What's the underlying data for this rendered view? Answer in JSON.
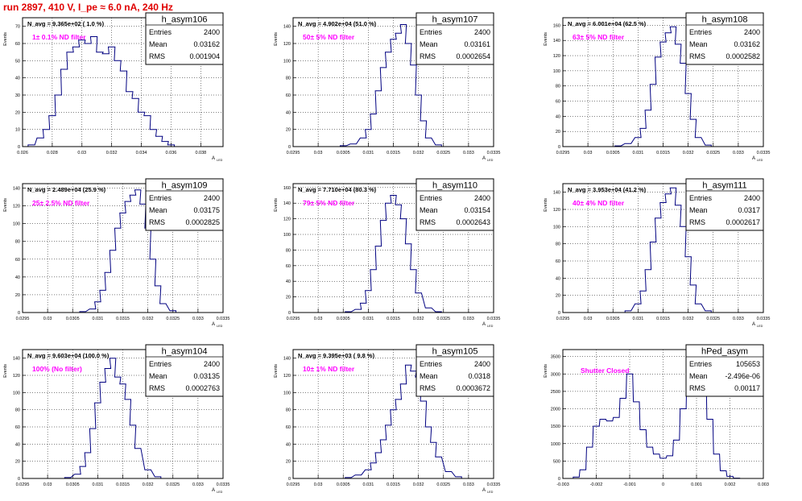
{
  "page": {
    "run_title": "run 2897,   410 V, I_pe ≈ 6.0 nA, 240 Hz"
  },
  "colors": {
    "histogram_line": "#000080",
    "filter_label": "#ff00ff",
    "run_title": "#e00000",
    "frame": "#000000",
    "grid": "#000000"
  },
  "chart_data": [
    {
      "type": "histogram",
      "name": "h_asym106",
      "header": "N_avg = 9.365e+02 ( 1.0 %)",
      "annotation": "1± 0.1% ND filter",
      "stats": {
        "entries_label": "Entries",
        "entries": "2400",
        "mean_label": "Mean",
        "mean": "0.03162",
        "rms_label": "RMS",
        "rms": "0.001904"
      },
      "ylabel": "Events",
      "xlabel": "A",
      "xlabel_sub": "LED",
      "xlim": [
        0.026,
        0.0395
      ],
      "ylim": [
        0,
        75
      ],
      "xticks": [
        "0.026",
        "0.028",
        "0.03",
        "0.032",
        "0.034",
        "0.036",
        "0.038"
      ],
      "xtick_values": [
        0.026,
        0.028,
        0.03,
        0.032,
        0.034,
        0.036,
        0.038
      ],
      "yticks": [
        0,
        10,
        20,
        30,
        40,
        50,
        60,
        70
      ],
      "bins": 90,
      "x": [
        0.0266,
        0.0272,
        0.0276,
        0.028,
        0.0284,
        0.0288,
        0.0292,
        0.0296,
        0.03,
        0.0304,
        0.0308,
        0.0312,
        0.0316,
        0.032,
        0.0324,
        0.0328,
        0.0332,
        0.0336,
        0.034,
        0.0344,
        0.0348,
        0.0352,
        0.0356,
        0.036
      ],
      "y": [
        1,
        5,
        10,
        18,
        30,
        45,
        55,
        58,
        62,
        60,
        64,
        55,
        54,
        58,
        50,
        44,
        32,
        28,
        20,
        18,
        10,
        6,
        3,
        1
      ]
    },
    {
      "type": "histogram",
      "name": "h_asym107",
      "header": "N_avg = 4.902e+04 (51.0 %)",
      "annotation": "50± 5% ND filter",
      "stats": {
        "entries_label": "Entries",
        "entries": "2400",
        "mean_label": "Mean",
        "mean": "0.03161",
        "rms_label": "RMS",
        "rms": "0.0002654"
      },
      "ylabel": "Events",
      "xlabel": "A",
      "xlabel_sub": "LED",
      "xlim": [
        0.0295,
        0.0335
      ],
      "ylim": [
        0,
        150
      ],
      "xticks": [
        "0.0295",
        "0.03",
        "0.0305",
        "0.031",
        "0.0315",
        "0.032",
        "0.0325",
        "0.033",
        "0.0335"
      ],
      "xtick_values": [
        0.0295,
        0.03,
        0.0305,
        0.031,
        0.0315,
        0.032,
        0.0325,
        0.033,
        0.0335
      ],
      "yticks": [
        0,
        20,
        40,
        60,
        80,
        100,
        120,
        140
      ],
      "bins": 100,
      "x": [
        0.0305,
        0.0307,
        0.0309,
        0.031,
        0.0311,
        0.0312,
        0.0313,
        0.0314,
        0.0315,
        0.0316,
        0.0317,
        0.0318,
        0.0319,
        0.032,
        0.0321,
        0.0322,
        0.0324
      ],
      "y": [
        1,
        3,
        10,
        20,
        38,
        65,
        92,
        110,
        125,
        132,
        142,
        120,
        95,
        60,
        30,
        10,
        2
      ]
    },
    {
      "type": "histogram",
      "name": "h_asym108",
      "header": "N_avg = 6.001e+04 (62.5 %)",
      "annotation": "63± 5% ND filter",
      "stats": {
        "entries_label": "Entries",
        "entries": "2400",
        "mean_label": "Mean",
        "mean": "0.03162",
        "rms_label": "RMS",
        "rms": "0.0002582"
      },
      "ylabel": "Events",
      "xlabel": "A",
      "xlabel_sub": "LED",
      "xlim": [
        0.0295,
        0.0335
      ],
      "ylim": [
        0,
        170
      ],
      "xticks": [
        "0.0295",
        "0.03",
        "0.0305",
        "0.031",
        "0.0315",
        "0.032",
        "0.0325",
        "0.033",
        "0.0335"
      ],
      "xtick_values": [
        0.0295,
        0.03,
        0.0305,
        0.031,
        0.0315,
        0.032,
        0.0325,
        0.033,
        0.0335
      ],
      "yticks": [
        0,
        20,
        40,
        60,
        80,
        100,
        120,
        140,
        160
      ],
      "bins": 100,
      "x": [
        0.0306,
        0.0308,
        0.031,
        0.0311,
        0.0312,
        0.0313,
        0.0314,
        0.0315,
        0.0316,
        0.0317,
        0.0318,
        0.0319,
        0.032,
        0.0321,
        0.0322,
        0.0324
      ],
      "y": [
        1,
        4,
        12,
        24,
        48,
        82,
        118,
        138,
        150,
        158,
        135,
        110,
        70,
        36,
        12,
        2
      ]
    },
    {
      "type": "histogram",
      "name": "h_asym109",
      "header": "N_avg = 2.489e+04 (25.9 %)",
      "annotation": "25± 2.5% ND filter",
      "stats": {
        "entries_label": "Entries",
        "entries": "2400",
        "mean_label": "Mean",
        "mean": "0.03175",
        "rms_label": "RMS",
        "rms": "0.0002825"
      },
      "ylabel": "Events",
      "xlabel": "A",
      "xlabel_sub": "LED",
      "xlim": [
        0.0295,
        0.0335
      ],
      "ylim": [
        0,
        145
      ],
      "xticks": [
        "0.0295",
        "0.03",
        "0.0305",
        "0.031",
        "0.0315",
        "0.032",
        "0.0325",
        "0.033",
        "0.0335"
      ],
      "xtick_values": [
        0.0295,
        0.03,
        0.0305,
        0.031,
        0.0315,
        0.032,
        0.0325,
        0.033,
        0.0335
      ],
      "yticks": [
        0,
        20,
        40,
        60,
        80,
        100,
        120,
        140
      ],
      "bins": 100,
      "x": [
        0.0307,
        0.0309,
        0.031,
        0.0311,
        0.0312,
        0.0313,
        0.0314,
        0.0315,
        0.0316,
        0.0317,
        0.0318,
        0.0319,
        0.032,
        0.0321,
        0.0322,
        0.0323,
        0.0325
      ],
      "y": [
        1,
        4,
        12,
        25,
        45,
        70,
        95,
        112,
        125,
        132,
        138,
        122,
        95,
        60,
        30,
        10,
        2
      ]
    },
    {
      "type": "histogram",
      "name": "h_asym110",
      "header": "N_avg = 7.710e+04 (80.3 %)",
      "annotation": "79± 5% ND filter",
      "stats": {
        "entries_label": "Entries",
        "entries": "2400",
        "mean_label": "Mean",
        "mean": "0.03154",
        "rms_label": "RMS",
        "rms": "0.0002643"
      },
      "ylabel": "Events",
      "xlabel": "A",
      "xlabel_sub": "LED",
      "xlim": [
        0.0295,
        0.0335
      ],
      "ylim": [
        0,
        165
      ],
      "xticks": [
        "0.0295",
        "0.03",
        "0.0305",
        "0.031",
        "0.0315",
        "0.032",
        "0.0325",
        "0.033",
        "0.0335"
      ],
      "xtick_values": [
        0.0295,
        0.03,
        0.0305,
        0.031,
        0.0315,
        0.032,
        0.0325,
        0.033,
        0.0335
      ],
      "yticks": [
        0,
        20,
        40,
        60,
        80,
        100,
        120,
        140,
        160
      ],
      "bins": 100,
      "x": [
        0.0306,
        0.0308,
        0.0309,
        0.031,
        0.0311,
        0.0312,
        0.0313,
        0.0314,
        0.0315,
        0.0316,
        0.0317,
        0.0318,
        0.0319,
        0.032,
        0.0322,
        0.0324
      ],
      "y": [
        1,
        4,
        12,
        28,
        55,
        85,
        118,
        140,
        150,
        138,
        120,
        88,
        55,
        25,
        6,
        1
      ]
    },
    {
      "type": "histogram",
      "name": "h_asym111",
      "header": "N_avg = 3.953e+04 (41.2 %)",
      "annotation": "40± 4% ND filter",
      "stats": {
        "entries_label": "Entries",
        "entries": "2400",
        "mean_label": "Mean",
        "mean": "0.0317",
        "rms_label": "RMS",
        "rms": "0.0002617"
      },
      "ylabel": "Events",
      "xlabel": "A",
      "xlabel_sub": "LED",
      "xlim": [
        0.0295,
        0.0335
      ],
      "ylim": [
        0,
        150
      ],
      "xticks": [
        "0.0295",
        "0.03",
        "0.0305",
        "0.031",
        "0.0315",
        "0.032",
        "0.0325",
        "0.033",
        "0.0335"
      ],
      "xtick_values": [
        0.0295,
        0.03,
        0.0305,
        0.031,
        0.0315,
        0.032,
        0.0325,
        0.033,
        0.0335
      ],
      "yticks": [
        0,
        20,
        40,
        60,
        80,
        100,
        120,
        140
      ],
      "bins": 100,
      "x": [
        0.0308,
        0.031,
        0.0311,
        0.0312,
        0.0313,
        0.0314,
        0.0315,
        0.0316,
        0.0317,
        0.0318,
        0.0319,
        0.032,
        0.0321,
        0.0322,
        0.0324
      ],
      "y": [
        2,
        10,
        25,
        50,
        82,
        110,
        128,
        138,
        145,
        125,
        100,
        65,
        32,
        10,
        2
      ]
    },
    {
      "type": "histogram",
      "name": "h_asym104",
      "header": "N_avg = 9.603e+04 (100.0 %)",
      "annotation": "100% (No filter)",
      "stats": {
        "entries_label": "Entries",
        "entries": "2400",
        "mean_label": "Mean",
        "mean": "0.03135",
        "rms_label": "RMS",
        "rms": "0.0002763"
      },
      "ylabel": "Events",
      "xlabel": "A",
      "xlabel_sub": "LED",
      "xlim": [
        0.0295,
        0.0335
      ],
      "ylim": [
        0,
        150
      ],
      "xticks": [
        "0.0295",
        "0.03",
        "0.0305",
        "0.031",
        "0.0315",
        "0.032",
        "0.0325",
        "0.033",
        "0.0335"
      ],
      "xtick_values": [
        0.0295,
        0.03,
        0.0305,
        0.031,
        0.0315,
        0.032,
        0.0325,
        0.033,
        0.0335
      ],
      "yticks": [
        0,
        20,
        40,
        60,
        80,
        100,
        120,
        140
      ],
      "bins": 100,
      "x": [
        0.0304,
        0.0306,
        0.0307,
        0.0308,
        0.0309,
        0.031,
        0.0311,
        0.0312,
        0.0313,
        0.0314,
        0.0315,
        0.0316,
        0.0317,
        0.0318,
        0.032,
        0.0322
      ],
      "y": [
        1,
        5,
        14,
        30,
        58,
        88,
        112,
        128,
        140,
        118,
        110,
        92,
        62,
        35,
        10,
        2
      ]
    },
    {
      "type": "histogram",
      "name": "h_asym105",
      "header": "N_avg = 9.395e+03 ( 9.8 %)",
      "annotation": "10± 1% ND filter",
      "stats": {
        "entries_label": "Entries",
        "entries": "2400",
        "mean_label": "Mean",
        "mean": "0.0318",
        "rms_label": "RMS",
        "rms": "0.0003672"
      },
      "ylabel": "Events",
      "xlabel": "A",
      "xlabel_sub": "LED",
      "xlim": [
        0.0295,
        0.0335
      ],
      "ylim": [
        0,
        150
      ],
      "xticks": [
        "0.0295",
        "0.03",
        "0.0305",
        "0.031",
        "0.0315",
        "0.032",
        "0.0325",
        "0.033",
        "0.0335"
      ],
      "xtick_values": [
        0.0295,
        0.03,
        0.0305,
        0.031,
        0.0315,
        0.032,
        0.0325,
        0.033,
        0.0335
      ],
      "yticks": [
        0,
        20,
        40,
        60,
        80,
        100,
        120,
        140
      ],
      "bins": 100,
      "x": [
        0.0306,
        0.0308,
        0.031,
        0.0311,
        0.0312,
        0.0313,
        0.0314,
        0.0315,
        0.0316,
        0.0317,
        0.0318,
        0.0319,
        0.032,
        0.0321,
        0.0322,
        0.0323,
        0.0324,
        0.0326,
        0.0328
      ],
      "y": [
        1,
        4,
        10,
        18,
        30,
        45,
        62,
        80,
        92,
        110,
        132,
        125,
        118,
        90,
        60,
        42,
        25,
        8,
        2
      ]
    },
    {
      "type": "histogram",
      "name": "hPed_asym",
      "header": "",
      "annotation": "Shutter Closed",
      "stats": {
        "entries_label": "Entries",
        "entries": "105653",
        "mean_label": "Mean",
        "mean": "-2.496e-06",
        "rms_label": "RMS",
        "rms": "0.00117"
      },
      "ylabel": "Events",
      "xlabel": "",
      "xlabel_sub": "",
      "xlim": [
        -0.003,
        0.003
      ],
      "ylim": [
        0,
        3700
      ],
      "xticks": [
        "-0.003",
        "-0.002",
        "-0.001",
        "0",
        "0.001",
        "0.002",
        "0.003"
      ],
      "xtick_values": [
        -0.003,
        -0.002,
        -0.001,
        0,
        0.001,
        0.002,
        0.003
      ],
      "yticks": [
        0,
        500,
        1000,
        1500,
        2000,
        2500,
        3000,
        3500
      ],
      "bins": 100,
      "x": [
        -0.0026,
        -0.0024,
        -0.0022,
        -0.002,
        -0.0018,
        -0.0016,
        -0.0014,
        -0.0012,
        -0.001,
        -0.0008,
        -0.0006,
        -0.0004,
        -0.0002,
        0,
        0.0002,
        0.0004,
        0.0006,
        0.0008,
        0.001,
        0.0012,
        0.0014,
        0.0016,
        0.0018,
        0.002,
        0.0022,
        0.0024
      ],
      "y": [
        40,
        250,
        900,
        1500,
        1700,
        1650,
        1750,
        2300,
        3000,
        2200,
        1400,
        900,
        700,
        580,
        650,
        1100,
        2000,
        3000,
        3550,
        2900,
        1700,
        700,
        220,
        60,
        10,
        0
      ]
    }
  ]
}
